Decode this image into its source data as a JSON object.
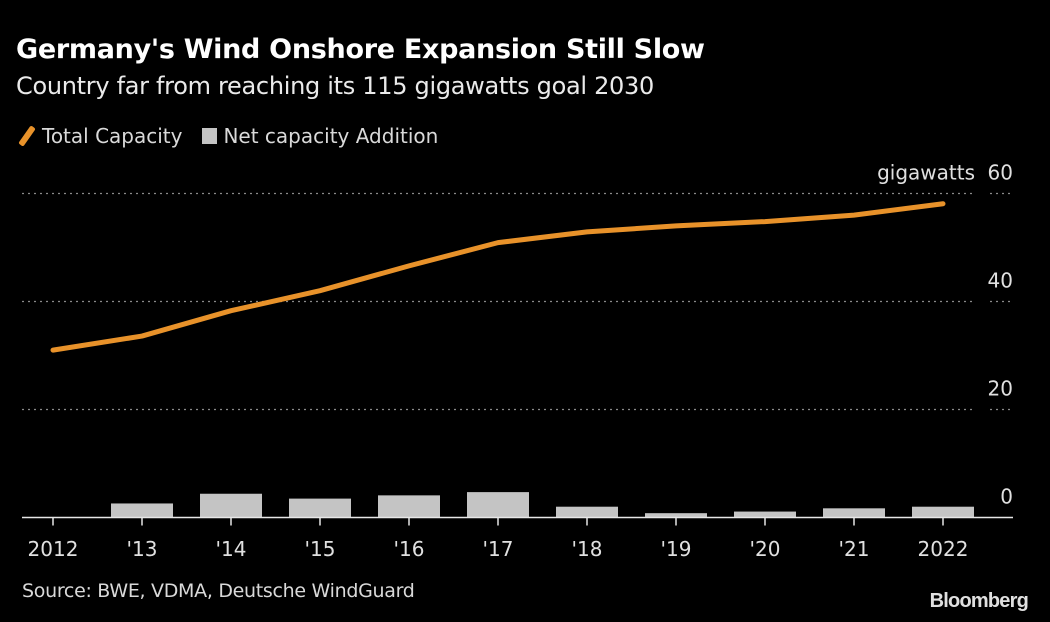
{
  "header": {
    "title": "Germany's Wind Onshore Expansion Still Slow",
    "subtitle": "Country far from reaching its 115 gigawatts goal 2030"
  },
  "legend": [
    {
      "label": "Total Capacity",
      "type": "line",
      "color": "#e8922a"
    },
    {
      "label": "Net capacity Addition",
      "type": "bar",
      "color": "#c4c4c4"
    }
  ],
  "footer": {
    "source": "Source: BWE, VDMA, Deutsche WindGuard",
    "brand": "Bloomberg"
  },
  "chart_data": {
    "type": "bar+line",
    "title": "Germany's Wind Onshore Expansion Still Slow",
    "subtitle": "Country far from reaching its 115 gigawatts goal 2030",
    "xlabel": "",
    "ylabel": "gigawatts",
    "unit_label": "gigawatts",
    "categories": [
      "2012",
      "'13",
      "'14",
      "'15",
      "'16",
      "'17",
      "'18",
      "'19",
      "'20",
      "'21",
      "2022"
    ],
    "series": [
      {
        "name": "Total Capacity",
        "type": "line",
        "color": "#e8922a",
        "values": [
          31.0,
          33.6,
          38.3,
          42.0,
          46.6,
          50.9,
          52.9,
          54.0,
          54.8,
          56.0,
          58.1
        ]
      },
      {
        "name": "Net capacity Addition",
        "type": "bar",
        "color": "#c4c4c4",
        "values": [
          0,
          2.6,
          4.4,
          3.5,
          4.1,
          4.7,
          2.0,
          0.8,
          1.1,
          1.7,
          2.0
        ]
      }
    ],
    "ylim": [
      0,
      60
    ],
    "yticks": [
      0,
      20,
      40,
      60
    ],
    "y_axis_position": "right",
    "grid": true,
    "legend_position": "top-left"
  }
}
